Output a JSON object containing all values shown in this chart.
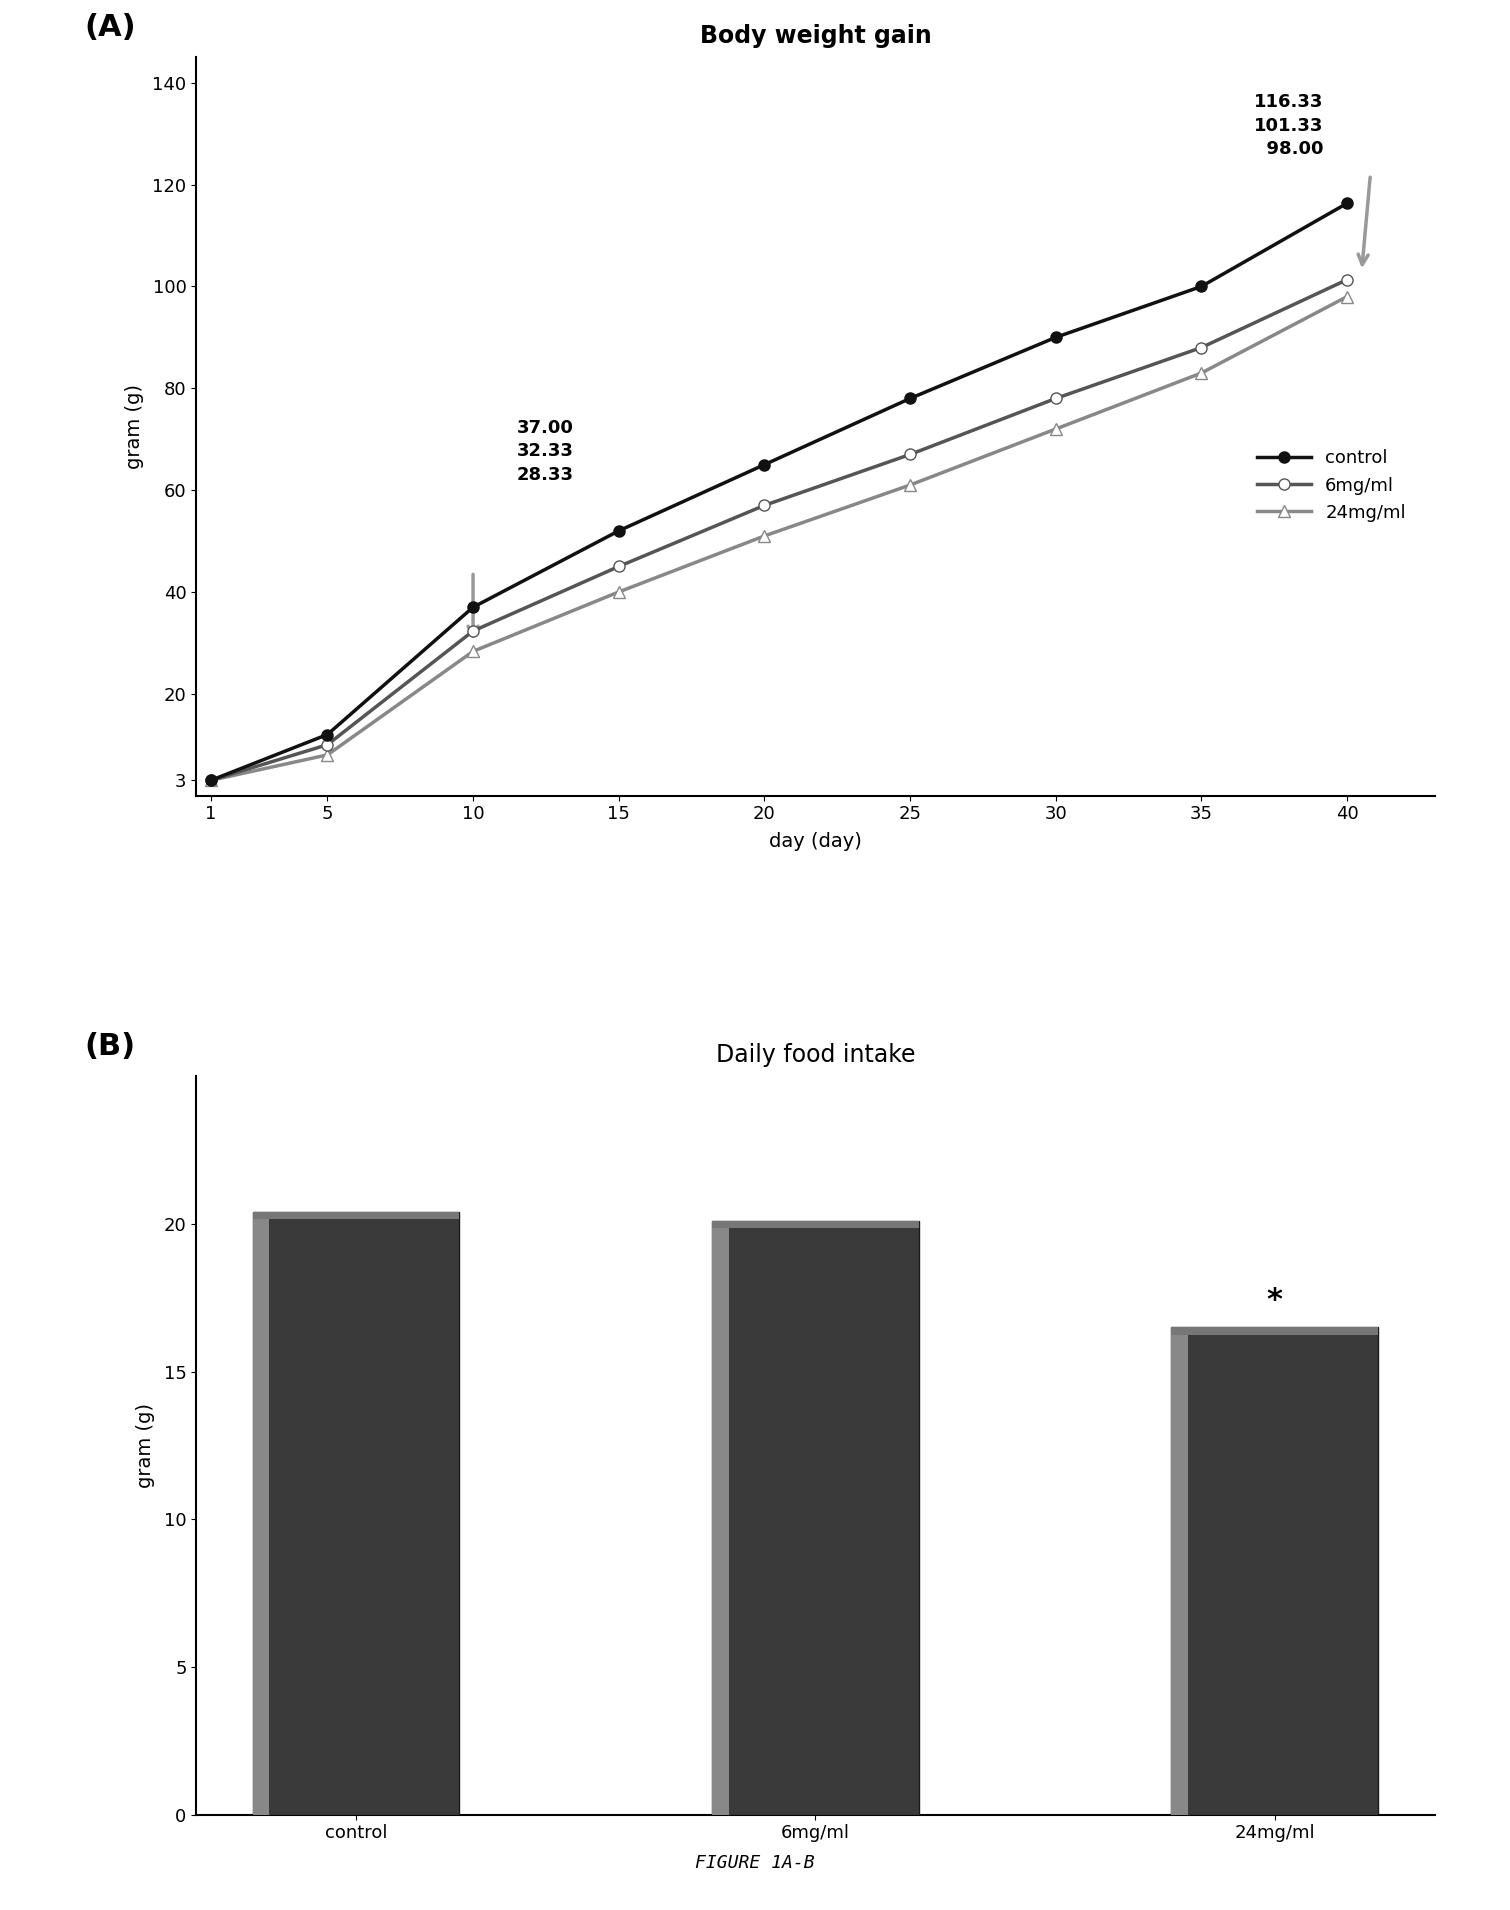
{
  "panel_a_title": "Body weight gain",
  "panel_b_title": "Daily food intake",
  "figure_label": "FIGURE 1A-B",
  "line_xlabel": "day (day)",
  "line_ylabel": "gram (g)",
  "bar_ylabel": "gram (g)",
  "line_days": [
    1,
    5,
    10,
    15,
    20,
    25,
    30,
    35,
    40
  ],
  "control_values": [
    3.0,
    12.0,
    37.0,
    52.0,
    65.0,
    78.0,
    90.0,
    100.0,
    116.33
  ],
  "mg6_values": [
    3.0,
    10.0,
    32.33,
    45.0,
    57.0,
    67.0,
    78.0,
    88.0,
    101.33
  ],
  "mg24_values": [
    3.0,
    8.0,
    28.33,
    40.0,
    51.0,
    61.0,
    72.0,
    83.0,
    98.0
  ],
  "line_ylim": [
    0,
    145
  ],
  "line_yticks": [
    3.0,
    20.0,
    40.0,
    60.0,
    80.0,
    100.0,
    120.0,
    140.0
  ],
  "line_xlim": [
    1,
    42
  ],
  "line_xticks": [
    1,
    5,
    10,
    15,
    20,
    25,
    30,
    35,
    40
  ],
  "arrow_color": "#999999",
  "control_color": "#111111",
  "mg6_color": "#555555",
  "mg24_color": "#888888",
  "legend_labels": [
    "control",
    "6mg/ml",
    "24mg/ml"
  ],
  "bar_categories": [
    "control",
    "6mg/ml",
    "24mg/ml"
  ],
  "bar_values": [
    20.4,
    20.1,
    16.5
  ],
  "bar_ylim": [
    0,
    25
  ],
  "bar_yticks": [
    0,
    5,
    10,
    15,
    20
  ],
  "bar_significance": [
    false,
    false,
    true
  ],
  "background_color": "#ffffff",
  "label_a": "(A)",
  "label_b": "(B)"
}
